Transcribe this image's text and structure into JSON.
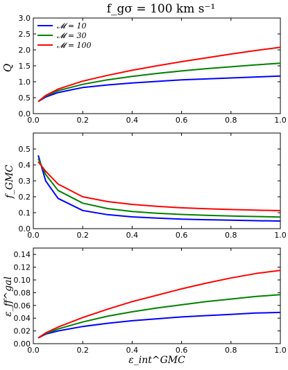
{
  "chart_data": [
    {
      "type": "line",
      "title": "f_gσ = 100 km s⁻¹",
      "ylabel": "Q",
      "xlabel": "",
      "xlim": [
        0.0,
        1.0
      ],
      "ylim": [
        0.0,
        3.0
      ],
      "x_ticks": [
        "0.0",
        "0.2",
        "0.4",
        "0.6",
        "0.8",
        "1.0"
      ],
      "y_ticks": [
        "0.0",
        "0.5",
        "1.0",
        "1.5",
        "2.0",
        "2.5",
        "3.0"
      ],
      "legend_position": "upper-left",
      "x": [
        0.02,
        0.05,
        0.1,
        0.2,
        0.3,
        0.4,
        0.5,
        0.6,
        0.7,
        0.8,
        0.9,
        1.0
      ],
      "series": [
        {
          "name": "𝓜 = 10",
          "color": "#0000ff",
          "values": [
            0.38,
            0.52,
            0.66,
            0.82,
            0.9,
            0.96,
            1.01,
            1.06,
            1.09,
            1.12,
            1.15,
            1.18
          ]
        },
        {
          "name": "𝓜 = 30",
          "color": "#008000",
          "values": [
            0.38,
            0.55,
            0.72,
            0.92,
            1.06,
            1.17,
            1.26,
            1.34,
            1.41,
            1.47,
            1.53,
            1.58
          ]
        },
        {
          "name": "𝓜 = 100",
          "color": "#ff0000",
          "values": [
            0.38,
            0.57,
            0.77,
            1.02,
            1.2,
            1.36,
            1.5,
            1.63,
            1.75,
            1.87,
            1.98,
            2.08
          ]
        }
      ]
    },
    {
      "type": "line",
      "title": "",
      "ylabel": "f_GMC",
      "xlabel": "",
      "xlim": [
        0.0,
        1.0
      ],
      "ylim": [
        0.0,
        0.6
      ],
      "x_ticks": [
        "0.0",
        "0.2",
        "0.4",
        "0.6",
        "0.8",
        "1.0"
      ],
      "y_ticks": [
        "0.0",
        "0.1",
        "0.2",
        "0.3",
        "0.4",
        "0.5"
      ],
      "x": [
        0.02,
        0.05,
        0.1,
        0.2,
        0.3,
        0.4,
        0.5,
        0.6,
        0.7,
        0.8,
        0.9,
        1.0
      ],
      "series": [
        {
          "color": "#0000ff",
          "values": [
            0.46,
            0.3,
            0.19,
            0.114,
            0.088,
            0.074,
            0.066,
            0.06,
            0.056,
            0.053,
            0.05,
            0.048
          ]
        },
        {
          "color": "#008000",
          "values": [
            0.44,
            0.34,
            0.24,
            0.16,
            0.126,
            0.108,
            0.097,
            0.089,
            0.084,
            0.079,
            0.076,
            0.073
          ]
        },
        {
          "color": "#ff0000",
          "values": [
            0.42,
            0.36,
            0.28,
            0.2,
            0.17,
            0.152,
            0.14,
            0.131,
            0.125,
            0.12,
            0.116,
            0.113
          ]
        }
      ]
    },
    {
      "type": "line",
      "title": "",
      "ylabel": "ε_ff^gal",
      "xlabel": "ε_int^GMC",
      "xlim": [
        0.0,
        1.0
      ],
      "ylim": [
        0.0,
        0.15
      ],
      "x_ticks": [
        "0.0",
        "0.2",
        "0.4",
        "0.6",
        "0.8",
        "1.0"
      ],
      "y_ticks": [
        "0.00",
        "0.02",
        "0.04",
        "0.06",
        "0.08",
        "0.10",
        "0.12",
        "0.14"
      ],
      "x": [
        0.02,
        0.05,
        0.1,
        0.2,
        0.3,
        0.4,
        0.5,
        0.6,
        0.7,
        0.8,
        0.9,
        1.0
      ],
      "series": [
        {
          "color": "#0000ff",
          "values": [
            0.009,
            0.015,
            0.02,
            0.027,
            0.032,
            0.036,
            0.039,
            0.042,
            0.044,
            0.046,
            0.048,
            0.049
          ]
        },
        {
          "color": "#008000",
          "values": [
            0.009,
            0.016,
            0.023,
            0.034,
            0.043,
            0.05,
            0.056,
            0.061,
            0.066,
            0.07,
            0.074,
            0.077
          ]
        },
        {
          "color": "#ff0000",
          "values": [
            0.009,
            0.017,
            0.026,
            0.041,
            0.054,
            0.066,
            0.076,
            0.086,
            0.095,
            0.103,
            0.11,
            0.115
          ]
        }
      ]
    }
  ]
}
